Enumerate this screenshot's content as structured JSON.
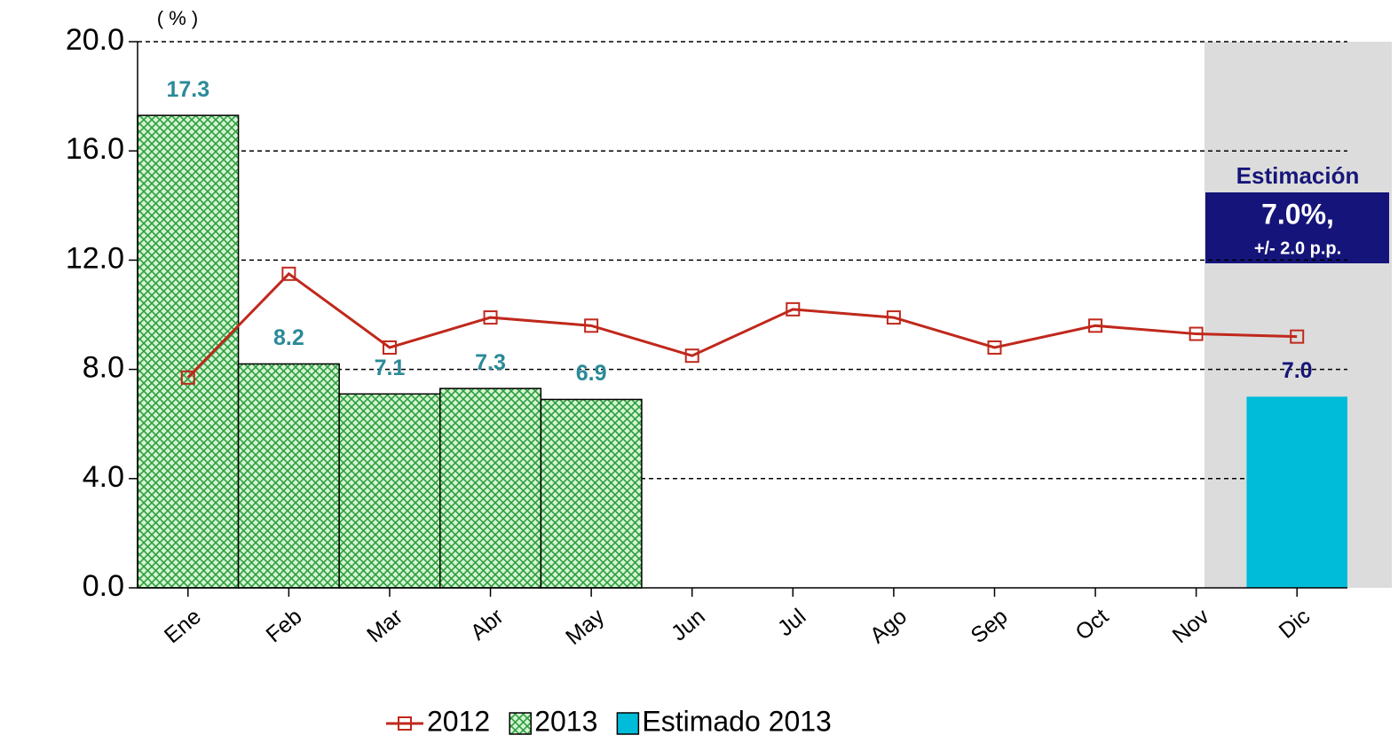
{
  "chart_data": {
    "type": "bar",
    "y_label": "( % )",
    "categories": [
      "Ene",
      "Feb",
      "Mar",
      "Abr",
      "May",
      "Jun",
      "Jul",
      "Ago",
      "Sep",
      "Oct",
      "Nov",
      "Dic"
    ],
    "series": [
      {
        "name": "2012",
        "type": "line",
        "color": "#c0281c",
        "values": [
          7.7,
          11.5,
          8.8,
          9.9,
          9.6,
          8.5,
          10.2,
          9.9,
          8.8,
          9.6,
          9.3,
          9.2
        ]
      },
      {
        "name": "2013",
        "type": "bar",
        "color": "#2e9e3e",
        "values": [
          17.3,
          8.2,
          7.1,
          7.3,
          6.9,
          null,
          null,
          null,
          null,
          null,
          null,
          null
        ]
      },
      {
        "name": "Estimado 2013",
        "type": "bar",
        "color": "#00bcd8",
        "values": [
          null,
          null,
          null,
          null,
          null,
          null,
          null,
          null,
          null,
          null,
          null,
          7.0
        ],
        "value_labels": [
          null,
          null,
          null,
          null,
          null,
          null,
          null,
          null,
          null,
          null,
          null,
          "7.0"
        ]
      }
    ],
    "ylim": [
      0,
      20
    ],
    "yticks": [
      {
        "value": 0,
        "label": "0.0"
      },
      {
        "value": 4,
        "label": "4.0"
      },
      {
        "value": 8,
        "label": "8.0"
      },
      {
        "value": 12,
        "label": "12.0"
      },
      {
        "value": 16,
        "label": "16.0"
      },
      {
        "value": 20,
        "label": "20.0"
      }
    ],
    "grid": true,
    "legend": "bottom",
    "annotation": {
      "title": "Estimación",
      "value": "7.0%,",
      "note": "+/- 2.0 p.p."
    }
  }
}
